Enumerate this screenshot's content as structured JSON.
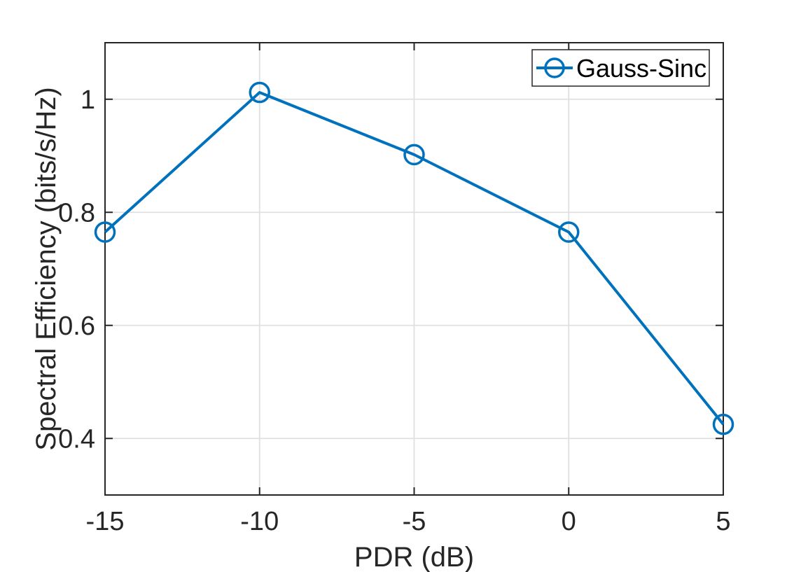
{
  "chart_data": {
    "type": "line",
    "title": "",
    "xlabel": "PDR (dB)",
    "ylabel": "Spectral Efficiency (bits/s/Hz)",
    "x": [
      -15,
      -10,
      -5,
      0,
      5
    ],
    "series": [
      {
        "name": "Gauss-Sinc",
        "marker": "open-circle",
        "color": "#0072BD",
        "values": [
          0.765,
          1.012,
          0.902,
          0.765,
          0.425
        ]
      }
    ],
    "xlim": [
      -15,
      5
    ],
    "ylim": [
      0.3,
      1.1
    ],
    "xticks": {
      "values": [
        -15,
        -10,
        -5,
        0,
        5
      ],
      "labels": [
        "-15",
        "-10",
        "-5",
        "0",
        "5"
      ]
    },
    "yticks": {
      "values": [
        0.4,
        0.6,
        0.8,
        1.0
      ],
      "labels": [
        "0.4",
        "0.6",
        "0.8",
        "1"
      ]
    },
    "grid": true,
    "legend": {
      "position": "top-right",
      "entries": [
        {
          "label": "Gauss-Sinc",
          "color": "#0072BD",
          "marker": "circle-with-line"
        }
      ]
    }
  },
  "style": {
    "background": "#ffffff",
    "line_color": "#0072BD",
    "axis_color": "#262626",
    "grid_color": "#e0e0e0",
    "tick_label_color": "#262626",
    "label_color": "#262626",
    "legend_text_color": "#000000",
    "legend_border_color": "#262626",
    "legend_background": "#ffffff"
  }
}
